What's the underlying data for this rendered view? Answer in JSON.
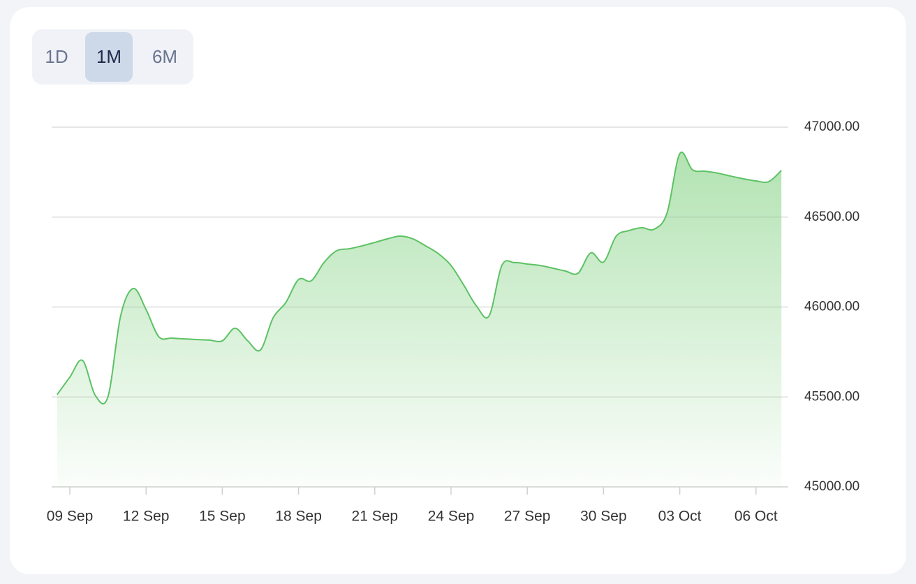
{
  "toolbar": {
    "buttons": [
      "1D",
      "1M",
      "6M"
    ],
    "selected": 1
  },
  "chart_data": {
    "type": "area",
    "categories": [
      null,
      "09 Sep",
      null,
      null,
      null,
      null,
      null,
      "12 Sep",
      null,
      null,
      null,
      null,
      null,
      "15 Sep",
      null,
      null,
      null,
      null,
      null,
      "18 Sep",
      null,
      null,
      null,
      null,
      null,
      "21 Sep",
      null,
      null,
      null,
      null,
      null,
      "24 Sep",
      null,
      null,
      null,
      null,
      null,
      "27 Sep",
      null,
      null,
      null,
      null,
      null,
      "30 Sep",
      null,
      null,
      null,
      null,
      null,
      "03 Oct",
      null,
      null,
      null,
      null,
      null,
      "06 Oct",
      null,
      null
    ],
    "values": [
      45513,
      45610,
      45703,
      45509,
      45501,
      45951,
      46103,
      45986,
      45835,
      45827,
      45823,
      45819,
      45816,
      45812,
      45882,
      45812,
      45761,
      45940,
      46025,
      46153,
      46146,
      46247,
      46313,
      46324,
      46340,
      46359,
      46379,
      46394,
      46379,
      46340,
      46297,
      46231,
      46122,
      46006,
      45951,
      46231,
      46247,
      46239,
      46231,
      46216,
      46200,
      46188,
      46301,
      46250,
      46394,
      46425,
      46441,
      46433,
      46522,
      46852,
      46763,
      46755,
      46744,
      46728,
      46713,
      46701,
      46697,
      46759
    ],
    "color": "#5cc264",
    "ylim": [
      45000,
      47000
    ],
    "yticks": [
      {
        "value": 45000,
        "label": "45000.00"
      },
      {
        "value": 45500,
        "label": "45500.00"
      },
      {
        "value": 46000,
        "label": "46000.00"
      },
      {
        "value": 46500,
        "label": "46500.00"
      },
      {
        "value": 47000,
        "label": "47000.00"
      }
    ],
    "grid": true
  }
}
